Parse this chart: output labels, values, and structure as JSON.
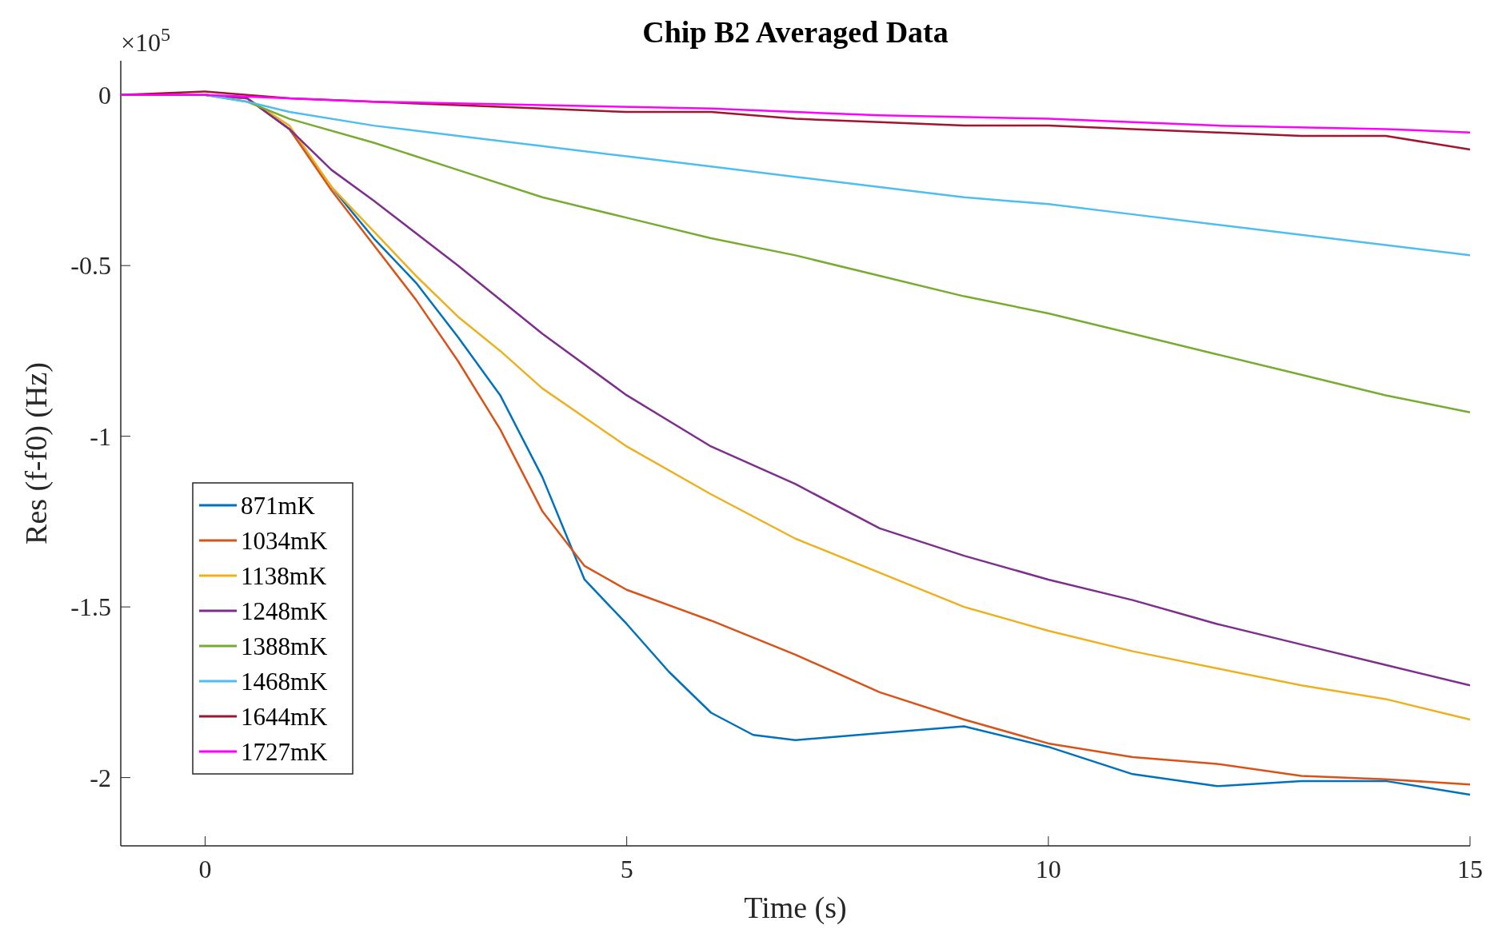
{
  "chart_data": {
    "type": "line",
    "title": "Chip B2 Averaged Data",
    "xlabel": "Time (s)",
    "ylabel": "Res (f-f0) (Hz)",
    "annotations": [
      "×10$^{5}$"
    ],
    "xlim": [
      -1,
      15
    ],
    "ylim": [
      -2.2,
      0.1
    ],
    "xticks": [
      0,
      5,
      10,
      15
    ],
    "yticks": [
      -2,
      -1.5,
      -1,
      -0.5,
      0
    ],
    "grid": false,
    "legend": "bottom left",
    "line_style": "solid",
    "marker": "none",
    "series": [
      {
        "name": "871mK",
        "color": "#0072bd",
        "x": [
          -1,
          0,
          0.5,
          1,
          1.5,
          2,
          2.5,
          3,
          3.5,
          4,
          4.3,
          4.5,
          5,
          5.5,
          6,
          6.5,
          7,
          8,
          9,
          10,
          11,
          12,
          13,
          14,
          15
        ],
        "values": [
          0,
          0,
          -0.01,
          -0.1,
          -0.27,
          -0.42,
          -0.55,
          -0.71,
          -0.88,
          -1.12,
          -1.3,
          -1.42,
          -1.55,
          -1.69,
          -1.81,
          -1.875,
          -1.89,
          -1.87,
          -1.85,
          -1.91,
          -1.99,
          -2.025,
          -2.01,
          -2.01,
          -2.05
        ]
      },
      {
        "name": "1034mK",
        "color": "#d95319",
        "x": [
          -1,
          0,
          0.5,
          1,
          1.5,
          2,
          2.5,
          3,
          3.5,
          4,
          4.5,
          5,
          6,
          7,
          8,
          9,
          10,
          11,
          12,
          13,
          14,
          15
        ],
        "values": [
          0,
          0,
          -0.01,
          -0.1,
          -0.28,
          -0.44,
          -0.6,
          -0.78,
          -0.98,
          -1.22,
          -1.38,
          -1.45,
          -1.54,
          -1.64,
          -1.75,
          -1.83,
          -1.9,
          -1.94,
          -1.96,
          -1.995,
          -2.005,
          -2.02
        ]
      },
      {
        "name": "1138mK",
        "color": "#edb120",
        "x": [
          -1,
          0,
          0.5,
          1,
          1.5,
          2,
          2.5,
          3,
          3.5,
          4,
          5,
          6,
          7,
          8,
          9,
          10,
          11,
          12,
          13,
          14,
          15
        ],
        "values": [
          0,
          0,
          -0.01,
          -0.09,
          -0.27,
          -0.4,
          -0.53,
          -0.65,
          -0.75,
          -0.86,
          -1.03,
          -1.17,
          -1.3,
          -1.4,
          -1.5,
          -1.57,
          -1.63,
          -1.68,
          -1.73,
          -1.77,
          -1.83
        ]
      },
      {
        "name": "1248mK",
        "color": "#7e2f8e",
        "x": [
          -1,
          0,
          0.5,
          1,
          1.5,
          2,
          3,
          4,
          5,
          6,
          7,
          8,
          9,
          10,
          11,
          12,
          13,
          14,
          15
        ],
        "values": [
          0,
          0,
          -0.01,
          -0.1,
          -0.22,
          -0.31,
          -0.5,
          -0.7,
          -0.88,
          -1.03,
          -1.14,
          -1.27,
          -1.35,
          -1.42,
          -1.48,
          -1.55,
          -1.61,
          -1.67,
          -1.73
        ]
      },
      {
        "name": "1388mK",
        "color": "#77ac30",
        "x": [
          -1,
          0,
          0.5,
          1,
          2,
          3,
          4,
          5,
          6,
          7,
          8,
          9,
          10,
          11,
          12,
          13,
          14,
          15
        ],
        "values": [
          0,
          0,
          -0.02,
          -0.07,
          -0.14,
          -0.22,
          -0.3,
          -0.36,
          -0.42,
          -0.47,
          -0.53,
          -0.59,
          -0.64,
          -0.7,
          -0.76,
          -0.82,
          -0.88,
          -0.93
        ]
      },
      {
        "name": "1468mK",
        "color": "#4dbeee",
        "x": [
          -1,
          0,
          0.5,
          1,
          2,
          3,
          4,
          5,
          6,
          7,
          8,
          9,
          10,
          11,
          12,
          13,
          14,
          15
        ],
        "values": [
          0,
          0,
          -0.02,
          -0.05,
          -0.09,
          -0.12,
          -0.15,
          -0.18,
          -0.21,
          -0.24,
          -0.27,
          -0.3,
          -0.32,
          -0.35,
          -0.38,
          -0.41,
          -0.44,
          -0.47
        ]
      },
      {
        "name": "1644mK",
        "color": "#a2142f",
        "x": [
          -1,
          0,
          1,
          2,
          3,
          4,
          5,
          6,
          7,
          8,
          9,
          10,
          11,
          12,
          13,
          14,
          15
        ],
        "values": [
          0,
          0.01,
          -0.01,
          -0.02,
          -0.03,
          -0.04,
          -0.05,
          -0.05,
          -0.07,
          -0.08,
          -0.09,
          -0.09,
          -0.1,
          -0.11,
          -0.12,
          -0.12,
          -0.16
        ]
      },
      {
        "name": "1727mK",
        "color": "#ff00ff",
        "x": [
          -1,
          0,
          1,
          2,
          4,
          6,
          8,
          10,
          12,
          14,
          15
        ],
        "values": [
          0,
          0,
          -0.01,
          -0.02,
          -0.03,
          -0.04,
          -0.06,
          -0.07,
          -0.09,
          -0.1,
          -0.11
        ]
      }
    ]
  }
}
